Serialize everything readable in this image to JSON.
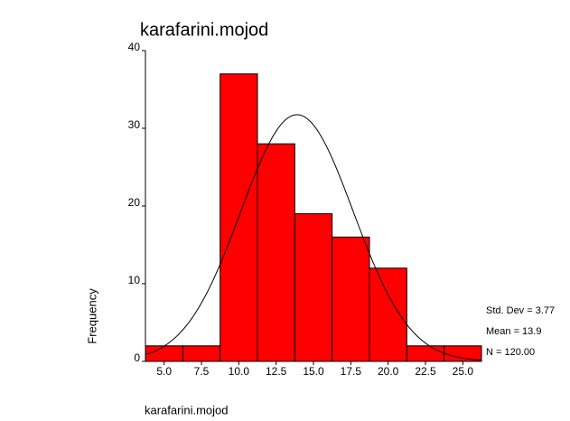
{
  "chart_data": {
    "type": "histogram",
    "title": "karafarini.mojod",
    "x_label": "karafarini.mojod",
    "y_label": "Frequency",
    "bins": [
      3.75,
      6.25,
      8.75,
      11.25,
      13.75,
      16.25,
      18.75,
      21.25,
      23.75,
      26.25
    ],
    "values": [
      2,
      2,
      37,
      28,
      19,
      16,
      12,
      2,
      2
    ],
    "color": "#ff0000",
    "xlim": [
      3.75,
      26.25
    ],
    "xticks": [
      {
        "value": 5,
        "label": "5.0"
      },
      {
        "value": 7.5,
        "label": "7.5"
      },
      {
        "value": 10,
        "label": "10.0"
      },
      {
        "value": 12.5,
        "label": "12.5"
      },
      {
        "value": 15,
        "label": "15.0"
      },
      {
        "value": 17.5,
        "label": "17.5"
      },
      {
        "value": 20,
        "label": "20.0"
      },
      {
        "value": 22.5,
        "label": "22.5"
      },
      {
        "value": 25,
        "label": "25.0"
      }
    ],
    "ylim": [
      0,
      40
    ],
    "yticks": [
      0,
      10,
      20,
      30,
      40
    ],
    "stats": [
      {
        "value": 3.77,
        "label": "Std. Dev = 3.77"
      },
      {
        "value": 13.9,
        "label": "Mean = 13.9"
      },
      {
        "value": 120,
        "label": "N = 120.00"
      }
    ]
  }
}
